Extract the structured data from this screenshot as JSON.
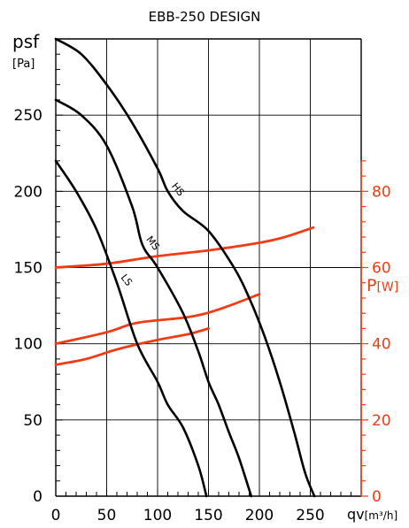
{
  "chart_data": {
    "type": "line",
    "title": "EBB-250 DESIGN",
    "xlabel": "qv",
    "xlabel_unit": "[m³/h]",
    "ylabel": "psf",
    "ylabel_unit": "[Pa]",
    "y2label": "P",
    "y2label_unit": "[W]",
    "xlim": [
      0,
      300
    ],
    "ylim": [
      0,
      300
    ],
    "y2lim": [
      0,
      120
    ],
    "x_ticks": [
      0,
      50,
      100,
      150,
      200,
      250
    ],
    "y_ticks": [
      0,
      50,
      100,
      150,
      200,
      250
    ],
    "y2_ticks": [
      0,
      20,
      40,
      60,
      80
    ],
    "grid": true,
    "colors": {
      "pressure": "#000000",
      "power": "#f03c14",
      "grid": "#000000"
    },
    "pressure_series": [
      {
        "name": "HS",
        "x": [
          0,
          25,
          50,
          75,
          100,
          110,
          125,
          150,
          175,
          190,
          205,
          220,
          235,
          245,
          254
        ],
        "y": [
          300,
          290,
          270,
          245,
          215,
          200,
          187,
          174,
          150,
          130,
          105,
          75,
          40,
          15,
          0
        ]
      },
      {
        "name": "MS",
        "x": [
          0,
          25,
          50,
          75,
          85,
          100,
          125,
          140,
          150,
          160,
          170,
          180,
          192
        ],
        "y": [
          260,
          250,
          230,
          190,
          165,
          150,
          120,
          95,
          75,
          60,
          42,
          25,
          0
        ]
      },
      {
        "name": "LS",
        "x": [
          0,
          20,
          40,
          60,
          80,
          100,
          110,
          125,
          140,
          148
        ],
        "y": [
          220,
          200,
          175,
          140,
          100,
          75,
          60,
          45,
          20,
          0
        ]
      }
    ],
    "power_series": [
      {
        "x": [
          0,
          50,
          100,
          150,
          200,
          225,
          253
        ],
        "y": [
          60,
          61,
          63,
          64.5,
          66.5,
          68,
          70.5
        ]
      },
      {
        "x": [
          0,
          50,
          80,
          130,
          160,
          200
        ],
        "y": [
          40,
          43,
          45.5,
          47,
          49,
          53
        ]
      },
      {
        "x": [
          0,
          30,
          60,
          100,
          130,
          150
        ],
        "y": [
          34.5,
          36,
          38.5,
          41,
          42.5,
          44
        ]
      }
    ]
  }
}
